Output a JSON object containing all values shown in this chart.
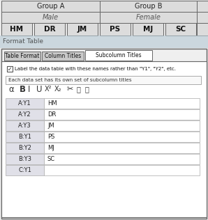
{
  "bg_color": "#e8e8e8",
  "table_header": {
    "row1": [
      "Group A",
      "Group B"
    ],
    "row2": [
      "Male",
      "Female"
    ],
    "row3": [
      "HM",
      "DR",
      "JM",
      "PS",
      "MJ",
      "SC"
    ]
  },
  "dialog": {
    "tabs": [
      "Table Format",
      "Column Titles",
      "Subcolumn Titles"
    ],
    "active_tab": 2,
    "checkbox_text": "Label the data table with these names rather than \"Y1\", \"Y2\", etc.",
    "dropdown_text": "Each data set has its own set of subcolumn titles",
    "rows": [
      [
        "A:Y1",
        "HM"
      ],
      [
        "A:Y2",
        "DR"
      ],
      [
        "A:Y3",
        "JM"
      ],
      [
        "B:Y1",
        "PS"
      ],
      [
        "B:Y2",
        "MJ"
      ],
      [
        "B:Y3",
        "SC"
      ],
      [
        "C:Y1",
        ""
      ]
    ]
  },
  "header_bg": "#dcdcdc",
  "tab_active_bg": "#ffffff",
  "tab_inactive_bg": "#c8c8c8",
  "dialog_bg": "#efefef",
  "content_bg": "#ffffff",
  "table_key_bg": "#e0e0e8",
  "table_val_bg": "#ffffff",
  "border_dark": "#666666",
  "border_light": "#aaaaaa"
}
